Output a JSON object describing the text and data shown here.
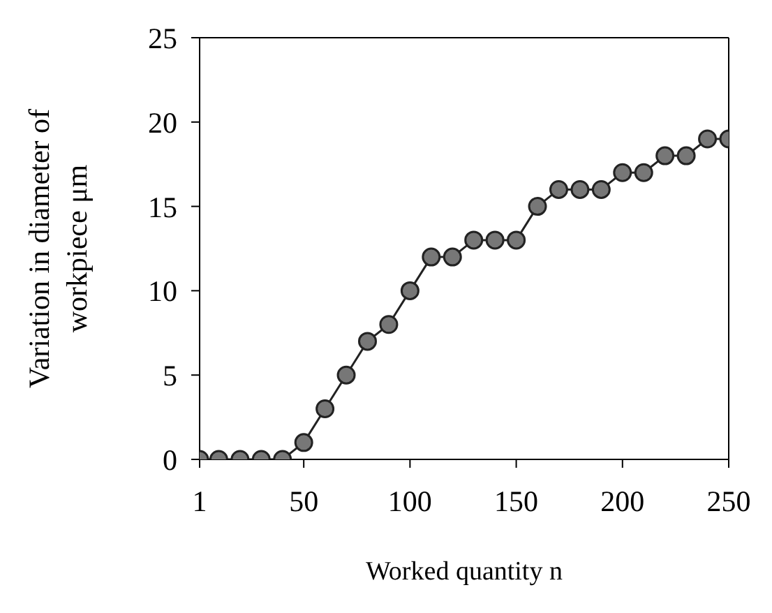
{
  "chart_data": {
    "type": "line",
    "xlabel": "Worked quantity  n",
    "ylabel": "Variation in diameter of workpiece μm",
    "x": [
      1,
      10,
      20,
      30,
      40,
      50,
      60,
      70,
      80,
      90,
      100,
      110,
      120,
      130,
      140,
      150,
      160,
      170,
      180,
      190,
      200,
      210,
      220,
      230,
      240,
      250
    ],
    "series": [
      {
        "color": "#222222",
        "values": [
          0,
          0,
          0,
          0,
          0,
          1,
          3,
          5,
          7,
          8,
          10,
          12,
          12,
          13,
          13,
          13,
          15,
          16,
          16,
          16,
          17,
          17,
          18,
          18,
          19,
          19
        ]
      }
    ],
    "xlim": [
      1,
      250
    ],
    "xticks": [
      1,
      50,
      100,
      150,
      200,
      250
    ],
    "ylim": [
      0,
      25
    ],
    "yticks": [
      0,
      5,
      10,
      15,
      20,
      25
    ],
    "legend": false,
    "marker": "circle",
    "line_style": "solid"
  }
}
